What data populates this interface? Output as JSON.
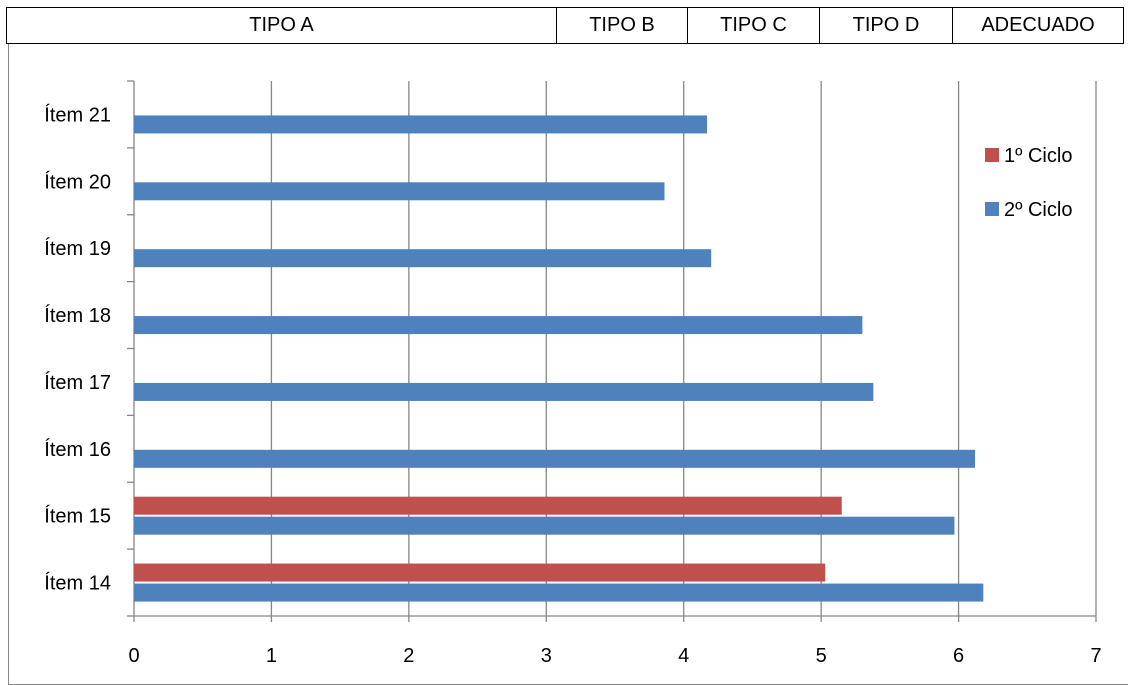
{
  "header": {
    "cells": [
      "TIPO A",
      "TIPO B",
      "TIPO C",
      "TIPO D",
      "ADECUADO"
    ]
  },
  "colors": {
    "series_1": "#c0504d",
    "series_2": "#4f81bd",
    "grid": "#868686",
    "axis": "#868686"
  },
  "chart_data": {
    "type": "bar",
    "orientation": "horizontal",
    "categories": [
      "Ítem 14",
      "Ítem 15",
      "Ítem 16",
      "Ítem 17",
      "Ítem 18",
      "Ítem 19",
      "Ítem 20",
      "Ítem 21"
    ],
    "series": [
      {
        "name": "1º Ciclo",
        "values": [
          5.03,
          5.15,
          null,
          null,
          null,
          null,
          null,
          null
        ]
      },
      {
        "name": "2º Ciclo",
        "values": [
          6.18,
          5.97,
          6.12,
          5.38,
          5.3,
          4.2,
          3.86,
          4.17
        ]
      }
    ],
    "xlim": [
      0,
      7
    ],
    "xticks": [
      "0",
      "1",
      "2",
      "3",
      "4",
      "5",
      "6",
      "7"
    ],
    "grid": "vertical",
    "legend_position": "right",
    "title": "",
    "xlabel": "",
    "ylabel": ""
  }
}
